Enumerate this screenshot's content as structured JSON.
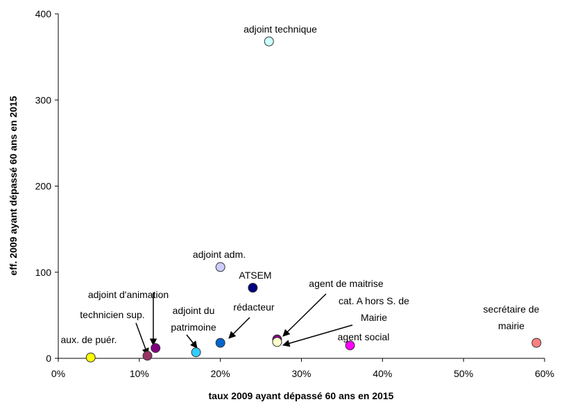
{
  "chart_data": {
    "type": "scatter",
    "xlabel": "taux 2009 ayant dépassé 60 ans en 2015",
    "ylabel": "eff. 2009 ayant dépassé 60 ans en 2015",
    "xlim": [
      0,
      0.6
    ],
    "ylim": [
      0,
      400
    ],
    "x_ticks": [
      0,
      0.1,
      0.2,
      0.3,
      0.4,
      0.5,
      0.6
    ],
    "x_tick_labels": [
      "0%",
      "10%",
      "20%",
      "30%",
      "40%",
      "50%",
      "60%"
    ],
    "y_ticks": [
      0,
      100,
      200,
      300,
      400
    ],
    "y_tick_labels": [
      "0",
      "100",
      "200",
      "300",
      "400"
    ],
    "grid": false,
    "points": [
      {
        "label": "adjoint technique",
        "x": 0.26,
        "y": 368,
        "color": "#ccffff"
      },
      {
        "label": "adjoint adm.",
        "x": 0.2,
        "y": 106,
        "color": "#ccccff"
      },
      {
        "label": "ATSEM",
        "x": 0.24,
        "y": 82,
        "color": "#000080"
      },
      {
        "label": "adjoint d'animation",
        "x": 0.12,
        "y": 12,
        "color": "#800080"
      },
      {
        "label": "technicien sup.",
        "x": 0.11,
        "y": 3,
        "color": "#993366"
      },
      {
        "label": "aux. de puér.",
        "x": 0.04,
        "y": 1,
        "color": "#ffff00"
      },
      {
        "label": "adjoint du patrimoine",
        "x": 0.17,
        "y": 7,
        "color": "#33ccff"
      },
      {
        "label": "rédacteur",
        "x": 0.2,
        "y": 18,
        "color": "#0066cc"
      },
      {
        "label": "agent de maitrise",
        "x": 0.27,
        "y": 22,
        "color": "#800080"
      },
      {
        "label": "cat. A hors S. de Mairie",
        "x": 0.27,
        "y": 19,
        "color": "#ffffcc"
      },
      {
        "label": "agent social",
        "x": 0.36,
        "y": 15,
        "color": "#ff00ff"
      },
      {
        "label": "secrétaire de mairie",
        "x": 0.59,
        "y": 18,
        "color": "#ff8080"
      }
    ]
  }
}
